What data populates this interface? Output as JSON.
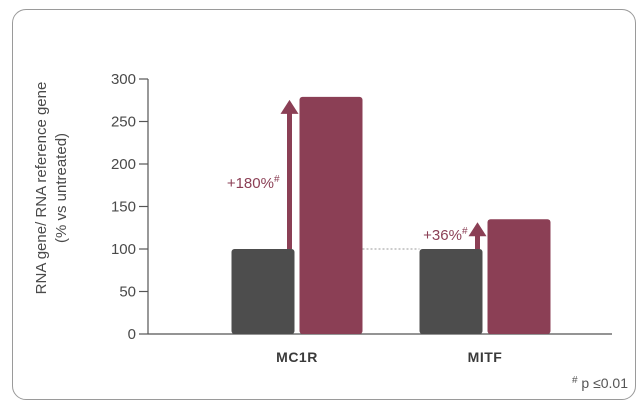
{
  "chart_data": {
    "type": "bar",
    "categories": [
      "MC1R",
      "MITF"
    ],
    "series": [
      {
        "values": [
          100,
          100
        ],
        "color": "#4d4d4d"
      },
      {
        "values": [
          279,
          135
        ],
        "color": "#8b3f55"
      }
    ],
    "ylabel_line1": "RNA gene/ RNA reference gene",
    "ylabel_line2": "(% vs untreated)",
    "yticks": [
      0,
      50,
      100,
      150,
      200,
      250,
      300
    ],
    "ylim": [
      0,
      300
    ],
    "annotations": [
      {
        "category": "MC1R",
        "text": "+180%",
        "marker": "#"
      },
      {
        "category": "MITF",
        "text": "+36%",
        "marker": "#"
      }
    ],
    "reference_line_value": 100,
    "footnote": {
      "marker": "#",
      "text": " p ≤0.01"
    },
    "grid": false,
    "accent_color": "#8b3f55"
  }
}
